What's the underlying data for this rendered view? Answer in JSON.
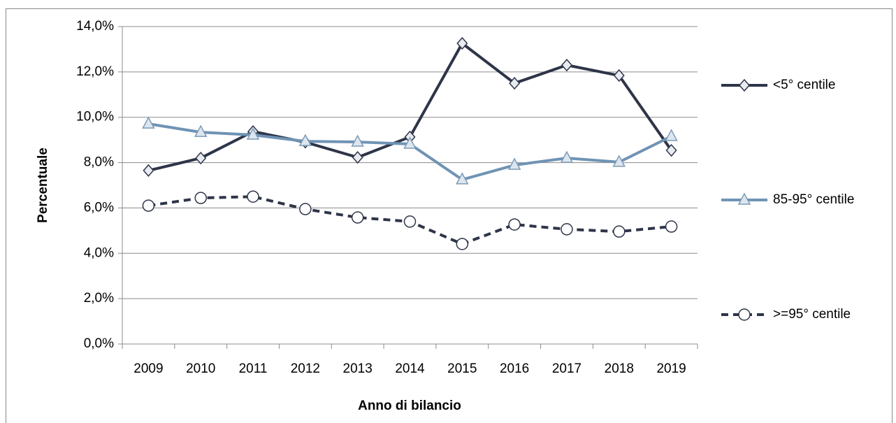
{
  "chart_data": {
    "type": "line",
    "ylabel": "Percentuale",
    "xlabel": "Anno di bilancio",
    "categories": [
      "2009",
      "2010",
      "2011",
      "2012",
      "2013",
      "2014",
      "2015",
      "2016",
      "2017",
      "2018",
      "2019"
    ],
    "series": [
      {
        "name": "<5° centile",
        "color": "#2e3549",
        "marker": "diamond",
        "dash": false,
        "values": [
          7.65,
          8.2,
          9.37,
          8.9,
          8.23,
          9.13,
          13.26,
          11.5,
          12.3,
          11.84,
          8.54
        ]
      },
      {
        "name": "85-95° centile",
        "color": "#6f93b4",
        "marker": "triangle",
        "dash": false,
        "values": [
          9.71,
          9.34,
          9.22,
          8.94,
          8.91,
          8.82,
          7.25,
          7.89,
          8.2,
          8.02,
          9.16
        ]
      },
      {
        "name": ">=95° centile",
        "color": "#2e3549",
        "marker": "circle",
        "dash": true,
        "values": [
          6.1,
          6.44,
          6.5,
          5.95,
          5.58,
          5.4,
          4.41,
          5.27,
          5.06,
          4.96,
          5.18
        ]
      }
    ],
    "ylim": [
      0,
      14
    ],
    "yticks": [
      {
        "value": 0,
        "label": "0,0%"
      },
      {
        "value": 2,
        "label": "2,0%"
      },
      {
        "value": 4,
        "label": "4,0%"
      },
      {
        "value": 6,
        "label": "6,0%"
      },
      {
        "value": 8,
        "label": "8,0%"
      },
      {
        "value": 10,
        "label": "10,0%"
      },
      {
        "value": 12,
        "label": "12,0%"
      },
      {
        "value": 14,
        "label": "14,0%"
      }
    ],
    "grid": true,
    "legend": "right"
  }
}
